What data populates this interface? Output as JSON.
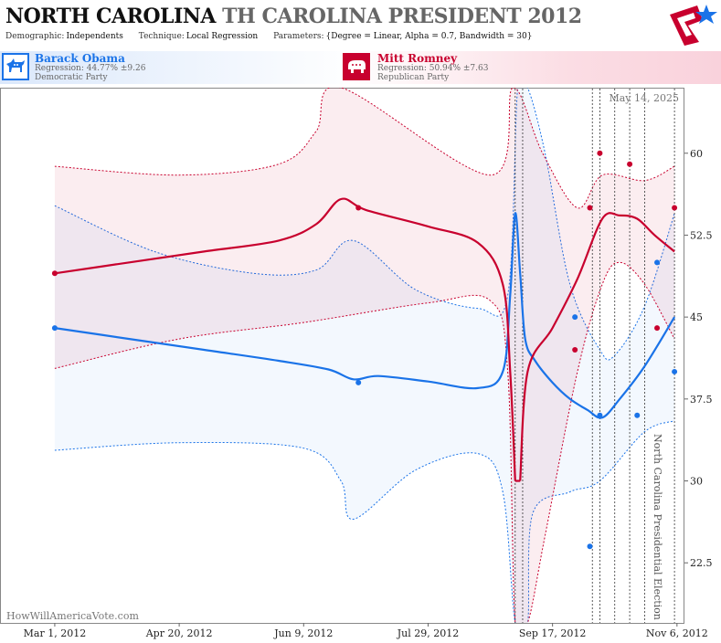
{
  "header": {
    "title_main": "NORTH CAROLINA",
    "title_sub": "TH CAROLINA PRESIDENT 2012",
    "demographic_label": "Demographic:",
    "demographic_value": "Independents",
    "technique_label": "Technique:",
    "technique_value": "Local Regression",
    "parameters_label": "Parameters:",
    "parameters_value": "{Degree = Linear, Alpha = 0.7, Bandwidth = 30}"
  },
  "candidates": {
    "obama": {
      "name": "Barack Obama",
      "regression": "Regression: 44.77% ±9.26",
      "party": "Democratic Party",
      "color": "#1a73e8",
      "icon": "donkey-icon"
    },
    "romney": {
      "name": "Mitt Romney",
      "regression": "Regression: 50.94% ±7.63",
      "party": "Republican Party",
      "color": "#c8002e",
      "icon": "elephant-icon"
    }
  },
  "watermark": "HowWillAmericaVote.com",
  "date_stamp": "May 14, 2025",
  "vertical_title": "North Carolina Presidential Election",
  "chart_data": {
    "type": "line",
    "x_tick_labels": [
      "Mar 1, 2012",
      "Apr 20, 2012",
      "Jun 9, 2012",
      "Jul 29, 2012",
      "Sep 17, 2012",
      "Nov 6, 2012"
    ],
    "x_tick_dates": [
      "2012-03-01",
      "2012-04-20",
      "2012-06-09",
      "2012-07-29",
      "2012-09-17",
      "2012-11-06"
    ],
    "xlim": [
      "2012-02-08",
      "2012-11-09"
    ],
    "y_ticks": [
      22.5,
      30,
      37.5,
      45,
      52.5,
      60
    ],
    "ylim": [
      17,
      66
    ],
    "grid": "vertical dotted lines at poll dates",
    "poll_dates": [
      "2012-09-02",
      "2012-09-05",
      "2012-10-03",
      "2012-10-06",
      "2012-10-12",
      "2012-10-18",
      "2012-10-24",
      "2012-11-05"
    ],
    "series": [
      {
        "name": "Barack Obama",
        "color": "#1a73e8",
        "points": [
          {
            "x": "2012-03-01",
            "y": 44
          },
          {
            "x": "2012-07-01",
            "y": 39
          },
          {
            "x": "2012-09-26",
            "y": 45
          },
          {
            "x": "2012-10-02",
            "y": 24
          },
          {
            "x": "2012-10-06",
            "y": 36
          },
          {
            "x": "2012-10-21",
            "y": 36
          },
          {
            "x": "2012-10-29",
            "y": 50
          },
          {
            "x": "2012-11-05",
            "y": 40
          }
        ],
        "trend": [
          {
            "x": "2012-03-01",
            "y": 44
          },
          {
            "x": "2012-03-31",
            "y": 43
          },
          {
            "x": "2012-04-30",
            "y": 42
          },
          {
            "x": "2012-05-30",
            "y": 41
          },
          {
            "x": "2012-06-19",
            "y": 40.2
          },
          {
            "x": "2012-06-29",
            "y": 39.3
          },
          {
            "x": "2012-07-09",
            "y": 39.6
          },
          {
            "x": "2012-07-29",
            "y": 39.1
          },
          {
            "x": "2012-08-18",
            "y": 38.5
          },
          {
            "x": "2012-08-28",
            "y": 40
          },
          {
            "x": "2012-08-31",
            "y": 47
          },
          {
            "x": "2012-09-02",
            "y": 54.5
          },
          {
            "x": "2012-09-04",
            "y": 49
          },
          {
            "x": "2012-09-06",
            "y": 43
          },
          {
            "x": "2012-09-10",
            "y": 41
          },
          {
            "x": "2012-09-17",
            "y": 39
          },
          {
            "x": "2012-09-24",
            "y": 37.5
          },
          {
            "x": "2012-10-01",
            "y": 36.5
          },
          {
            "x": "2012-10-07",
            "y": 35.8
          },
          {
            "x": "2012-10-14",
            "y": 37.5
          },
          {
            "x": "2012-10-24",
            "y": 40.5
          },
          {
            "x": "2012-11-05",
            "y": 45
          }
        ],
        "upper": [
          {
            "x": "2012-03-01",
            "y": 55.2
          },
          {
            "x": "2012-04-10",
            "y": 51
          },
          {
            "x": "2012-05-20",
            "y": 49
          },
          {
            "x": "2012-06-14",
            "y": 49.3
          },
          {
            "x": "2012-06-29",
            "y": 52
          },
          {
            "x": "2012-07-24",
            "y": 47.5
          },
          {
            "x": "2012-08-18",
            "y": 45.8
          },
          {
            "x": "2012-08-30",
            "y": 47
          },
          {
            "x": "2012-09-03",
            "y": 66
          },
          {
            "x": "2012-09-07",
            "y": 66
          },
          {
            "x": "2012-09-14",
            "y": 60
          },
          {
            "x": "2012-09-24",
            "y": 48
          },
          {
            "x": "2012-10-06",
            "y": 42
          },
          {
            "x": "2012-10-12",
            "y": 41.5
          },
          {
            "x": "2012-10-24",
            "y": 46
          },
          {
            "x": "2012-11-05",
            "y": 54.5
          }
        ],
        "lower": [
          {
            "x": "2012-03-01",
            "y": 32.8
          },
          {
            "x": "2012-04-20",
            "y": 33.5
          },
          {
            "x": "2012-06-09",
            "y": 33
          },
          {
            "x": "2012-06-24",
            "y": 30
          },
          {
            "x": "2012-06-29",
            "y": 26.5
          },
          {
            "x": "2012-07-24",
            "y": 31
          },
          {
            "x": "2012-08-18",
            "y": 32.5
          },
          {
            "x": "2012-08-28",
            "y": 29
          },
          {
            "x": "2012-09-02",
            "y": 17
          },
          {
            "x": "2012-09-07",
            "y": 17
          },
          {
            "x": "2012-09-09",
            "y": 27
          },
          {
            "x": "2012-09-24",
            "y": 29
          },
          {
            "x": "2012-10-06",
            "y": 30
          },
          {
            "x": "2012-10-24",
            "y": 34.5
          },
          {
            "x": "2012-11-05",
            "y": 35.5
          }
        ]
      },
      {
        "name": "Mitt Romney",
        "color": "#c8002e",
        "points": [
          {
            "x": "2012-03-01",
            "y": 49
          },
          {
            "x": "2012-07-01",
            "y": 55
          },
          {
            "x": "2012-09-26",
            "y": 42
          },
          {
            "x": "2012-10-02",
            "y": 55
          },
          {
            "x": "2012-10-06",
            "y": 60
          },
          {
            "x": "2012-10-18",
            "y": 59
          },
          {
            "x": "2012-10-29",
            "y": 44
          },
          {
            "x": "2012-11-05",
            "y": 55
          }
        ],
        "trend": [
          {
            "x": "2012-03-01",
            "y": 49
          },
          {
            "x": "2012-03-31",
            "y": 50
          },
          {
            "x": "2012-04-30",
            "y": 51
          },
          {
            "x": "2012-05-30",
            "y": 52
          },
          {
            "x": "2012-06-14",
            "y": 53.5
          },
          {
            "x": "2012-06-24",
            "y": 55.8
          },
          {
            "x": "2012-07-04",
            "y": 54.8
          },
          {
            "x": "2012-07-29",
            "y": 53.3
          },
          {
            "x": "2012-08-18",
            "y": 51.8
          },
          {
            "x": "2012-08-28",
            "y": 48
          },
          {
            "x": "2012-08-31",
            "y": 40
          },
          {
            "x": "2012-09-02",
            "y": 30
          }
        ],
        "trend_tail": [
          {
            "x": "2012-09-04",
            "y": 30
          },
          {
            "x": "2012-09-07",
            "y": 40
          },
          {
            "x": "2012-09-17",
            "y": 44
          },
          {
            "x": "2012-09-27",
            "y": 48.5
          },
          {
            "x": "2012-10-07",
            "y": 54
          },
          {
            "x": "2012-10-14",
            "y": 54.3
          },
          {
            "x": "2012-10-21",
            "y": 54
          },
          {
            "x": "2012-10-28",
            "y": 52.5
          },
          {
            "x": "2012-11-05",
            "y": 51
          }
        ],
        "upper": [
          {
            "x": "2012-03-01",
            "y": 58.8
          },
          {
            "x": "2012-04-20",
            "y": 58
          },
          {
            "x": "2012-05-30",
            "y": 59
          },
          {
            "x": "2012-06-14",
            "y": 62
          },
          {
            "x": "2012-06-24",
            "y": 66
          },
          {
            "x": "2012-08-23",
            "y": 58
          },
          {
            "x": "2012-09-01",
            "y": 66
          },
          {
            "x": "2012-09-13",
            "y": 60
          },
          {
            "x": "2012-09-27",
            "y": 55
          },
          {
            "x": "2012-10-07",
            "y": 58
          },
          {
            "x": "2012-10-24",
            "y": 57.5
          },
          {
            "x": "2012-11-05",
            "y": 58.8
          }
        ],
        "lower": [
          {
            "x": "2012-03-01",
            "y": 40.3
          },
          {
            "x": "2012-04-20",
            "y": 43
          },
          {
            "x": "2012-06-09",
            "y": 44.5
          },
          {
            "x": "2012-07-29",
            "y": 46.3
          },
          {
            "x": "2012-08-23",
            "y": 46.5
          },
          {
            "x": "2012-08-30",
            "y": 40
          },
          {
            "x": "2012-09-02",
            "y": 17
          },
          {
            "x": "2012-09-07",
            "y": 17
          },
          {
            "x": "2012-09-14",
            "y": 25
          },
          {
            "x": "2012-09-27",
            "y": 40
          },
          {
            "x": "2012-10-07",
            "y": 48
          },
          {
            "x": "2012-10-14",
            "y": 50
          },
          {
            "x": "2012-10-24",
            "y": 48
          },
          {
            "x": "2012-11-05",
            "y": 43
          }
        ]
      }
    ]
  }
}
